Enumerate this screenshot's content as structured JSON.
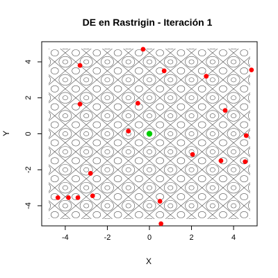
{
  "chart_data": {
    "type": "scatter",
    "title": "DE en Rastrigin - Iteración 1",
    "xlabel": "X",
    "ylabel": "Y",
    "xlim": [
      -5.12,
      5.12
    ],
    "ylim": [
      -5.12,
      5.12
    ],
    "x_ticks": [
      -4,
      -2,
      0,
      2,
      4
    ],
    "y_ticks": [
      -4,
      -2,
      0,
      2,
      4
    ],
    "x_tick_labels": [
      "-4",
      "-2",
      "0",
      "2",
      "4"
    ],
    "y_tick_labels": [
      "-4",
      "-2",
      "0",
      "2",
      "4"
    ],
    "background": "contour",
    "colors": {
      "population": "#ff0000",
      "best": "#00cc00",
      "contour": "#4d4d4d"
    },
    "series": [
      {
        "x": [
          -0.3,
          -3.3,
          0.7,
          2.7,
          -3.3,
          -0.55,
          3.6,
          -1.0,
          4.6,
          4.85,
          2.05,
          3.4,
          4.55,
          -2.8,
          -2.7,
          -3.4,
          -3.85,
          -4.35,
          0.5,
          0.55
        ],
        "y": [
          4.7,
          3.8,
          3.5,
          3.2,
          1.65,
          1.7,
          1.3,
          0.15,
          -0.1,
          3.55,
          -1.15,
          -1.5,
          -1.55,
          -2.2,
          -3.45,
          -3.55,
          -3.55,
          -3.55,
          -3.75,
          -5.0
        ]
      },
      {
        "x": [
          0.0
        ],
        "y": [
          0.0
        ]
      }
    ]
  }
}
